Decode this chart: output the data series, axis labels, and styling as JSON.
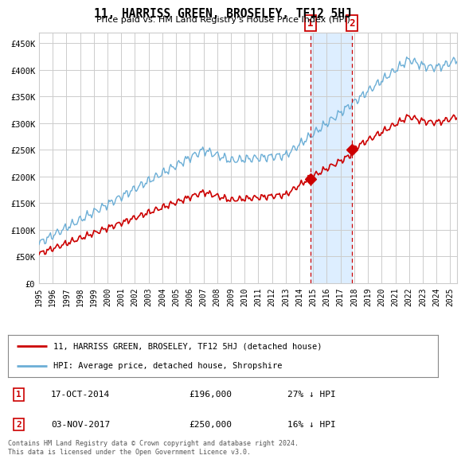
{
  "title": "11, HARRISS GREEN, BROSELEY, TF12 5HJ",
  "subtitle": "Price paid vs. HM Land Registry's House Price Index (HPI)",
  "ylabel_ticks": [
    "£0",
    "£50K",
    "£100K",
    "£150K",
    "£200K",
    "£250K",
    "£300K",
    "£350K",
    "£400K",
    "£450K"
  ],
  "ytick_vals": [
    0,
    50000,
    100000,
    150000,
    200000,
    250000,
    300000,
    350000,
    400000,
    450000
  ],
  "ylim": [
    0,
    470000
  ],
  "xlim_start": 1995.0,
  "xlim_end": 2025.5,
  "sale1_x": 2014.8,
  "sale1_y": 196000,
  "sale2_x": 2017.83,
  "sale2_y": 250000,
  "sale1_label": "17-OCT-2014",
  "sale1_price": "£196,000",
  "sale1_note": "27% ↓ HPI",
  "sale2_label": "03-NOV-2017",
  "sale2_price": "£250,000",
  "sale2_note": "16% ↓ HPI",
  "legend_line1": "11, HARRISS GREEN, BROSELEY, TF12 5HJ (detached house)",
  "legend_line2": "HPI: Average price, detached house, Shropshire",
  "footer": "Contains HM Land Registry data © Crown copyright and database right 2024.\nThis data is licensed under the Open Government Licence v3.0.",
  "hpi_color": "#6baed6",
  "price_color": "#cc0000",
  "sale_marker_color": "#cc0000",
  "vline_color": "#cc0000",
  "shade_color": "#ddeeff",
  "background_color": "#ffffff",
  "grid_color": "#cccccc"
}
